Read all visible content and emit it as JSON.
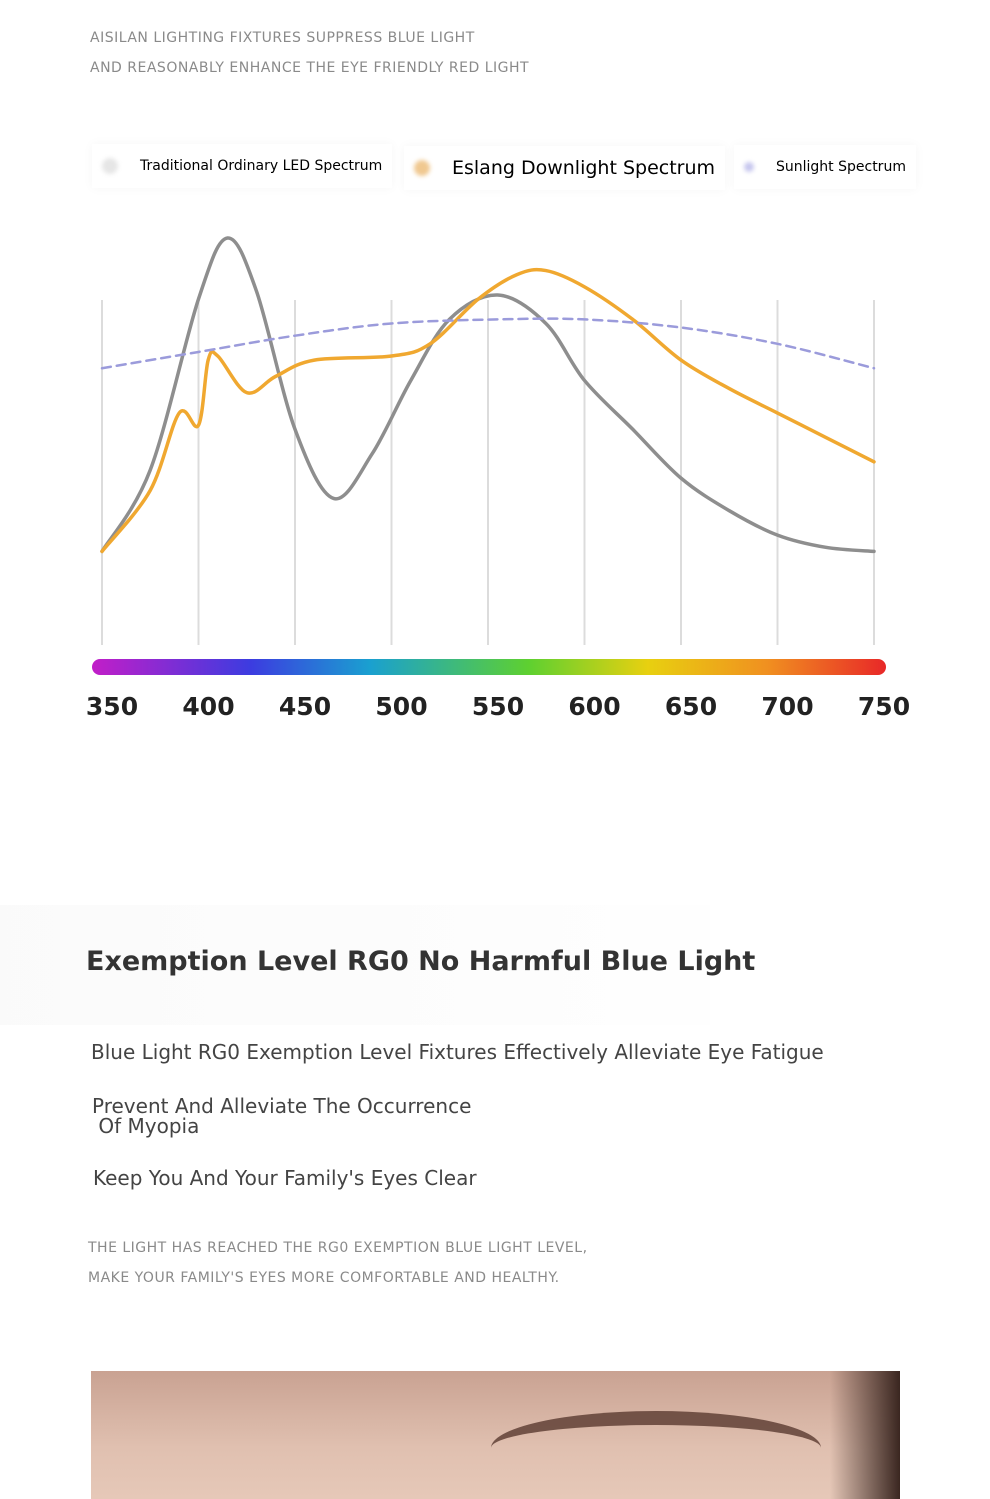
{
  "header": {
    "lines": [
      "AISILAN LIGHTING FIXTURES SUPPRESS BLUE LIGHT",
      "AND REASONABLY ENHANCE THE EYE FRIENDLY RED LIGHT"
    ]
  },
  "chart_data": {
    "type": "line",
    "x": [
      350,
      375,
      390,
      400,
      405,
      410,
      415,
      425,
      430,
      440,
      450,
      460,
      470,
      490,
      500,
      510,
      520,
      530,
      545,
      555,
      565,
      580,
      600,
      625,
      650,
      675,
      700,
      725,
      750
    ],
    "series": [
      {
        "name": "Traditional Ordinary LED Spectrum",
        "color": "#8e8e8e",
        "values": [
          23,
          43,
          null,
          85,
          null,
          null,
          100,
          null,
          87,
          null,
          53,
          null,
          36,
          47,
          null,
          65,
          null,
          80,
          null,
          86,
          null,
          79,
          65,
          53,
          41,
          33,
          27,
          24,
          23
        ]
      },
      {
        "name": "Eslang Downlight Spectrum",
        "color": "#f0a830",
        "values": [
          23,
          38,
          57,
          54,
          70,
          71,
          null,
          62,
          null,
          66,
          null,
          70,
          null,
          null,
          71,
          null,
          74,
          null,
          85,
          null,
          91,
          92,
          88,
          80,
          70,
          63,
          57,
          51,
          45
        ]
      },
      {
        "name": "Sunlight Spectrum",
        "color": "#9b9bdb",
        "dashed": true,
        "values": [
          68,
          null,
          null,
          72,
          null,
          null,
          null,
          null,
          null,
          null,
          76,
          null,
          null,
          null,
          79,
          null,
          null,
          null,
          null,
          80,
          null,
          null,
          80,
          null,
          78,
          null,
          74,
          null,
          68
        ]
      }
    ],
    "xlim": [
      350,
      750
    ],
    "xticks": [
      350,
      400,
      450,
      500,
      550,
      600,
      650,
      700,
      750
    ],
    "ylim": [
      0,
      100
    ],
    "grid": true
  },
  "section": {
    "title": "Exemption Level RG0 No Harmful Blue Light",
    "bullets": [
      [
        "Blue Light RG0 Exemption Level Fixtures Effectively Alleviate Eye Fatigue"
      ],
      [
        "Prevent And Alleviate The Occurrence",
        " Of Myopia"
      ],
      [
        "Keep You And Your Family's Eyes Clear"
      ]
    ],
    "note": [
      "THE LIGHT HAS REACHED THE RG0 EXEMPTION BLUE LIGHT LEVEL,",
      "MAKE YOUR FAMILY'S EYES MORE COMFORTABLE AND HEALTHY."
    ]
  }
}
